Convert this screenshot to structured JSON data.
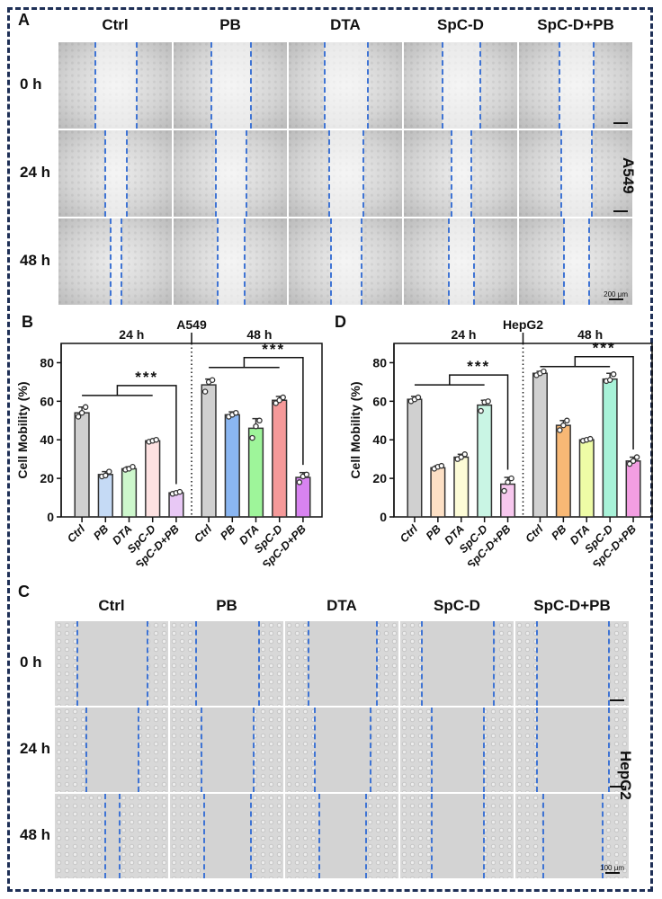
{
  "figure": {
    "panels": {
      "A": "A",
      "B": "B",
      "C": "C",
      "D": "D"
    },
    "groups": [
      "Ctrl",
      "PB",
      "DTA",
      "SpC-D",
      "SpC-D+PB"
    ],
    "timepoints": [
      "0 h",
      "24 h",
      "48 h"
    ],
    "cell_lines": {
      "a549": "A549",
      "hepg2": "HepG2"
    },
    "scale_bars": {
      "a549": "200 μm",
      "hepg2": "100 μm"
    },
    "micrograph_gaps": {
      "a549": {
        "0 h": [
          0.36,
          0.35,
          0.38,
          0.33,
          0.3
        ],
        "24 h": [
          0.19,
          0.27,
          0.29,
          0.17,
          0.26
        ],
        "48 h": [
          0.1,
          0.23,
          0.27,
          0.22,
          0.22
        ]
      },
      "hepg2": {
        "0 h": [
          0.61,
          0.55,
          0.6,
          0.62,
          0.63
        ],
        "24 h": [
          0.45,
          0.45,
          0.49,
          0.46,
          0.62
        ],
        "48 h": [
          0.12,
          0.4,
          0.4,
          0.45,
          0.51
        ]
      }
    }
  },
  "chart_data": [
    {
      "type": "bar",
      "panel": "B",
      "title": "A549",
      "ylabel": "Cell Mobility (%)",
      "xlabel": "",
      "ylim": [
        0,
        90
      ],
      "yticks": [
        0,
        20,
        40,
        60,
        80
      ],
      "section_labels": [
        "24 h",
        "48 h"
      ],
      "categories": [
        "Ctrl",
        "PB",
        "DTA",
        "SpC-D",
        "SpC-D+PB"
      ],
      "colors": [
        "#d0d0d0",
        "#c5daf5",
        "#cdf7cc",
        "#fde1e1",
        "#e8c8f5",
        "#d0d0d0",
        "#8ab6f2",
        "#9ef59a",
        "#f59999",
        "#d883f0"
      ],
      "series": [
        {
          "name": "24 h",
          "values": [
            54,
            22,
            25,
            39.5,
            12.5
          ],
          "errors": [
            3,
            1.5,
            1,
            0.5,
            0.5
          ],
          "points": [
            [
              52,
              54,
              57
            ],
            [
              21,
              21.5,
              23.5
            ],
            [
              24.5,
              25,
              26
            ],
            [
              39,
              39.5,
              40
            ],
            [
              12,
              12.5,
              13
            ]
          ]
        },
        {
          "name": "48 h",
          "values": [
            68.5,
            53,
            46,
            60.5,
            20.5
          ],
          "errors": [
            3,
            1.5,
            5,
            2,
            2.5
          ],
          "points": [
            [
              65,
              70,
              71
            ],
            [
              52,
              53,
              54
            ],
            [
              41,
              47,
              50
            ],
            [
              59,
              60.5,
              62
            ],
            [
              18,
              21,
              22
            ]
          ]
        }
      ],
      "significance": [
        {
          "section": "24 h",
          "label": "***",
          "from": [
            0,
            3
          ],
          "to": 4
        },
        {
          "section": "48 h",
          "label": "***",
          "from": [
            0,
            3
          ],
          "to": 4
        }
      ],
      "grid": false
    },
    {
      "type": "bar",
      "panel": "D",
      "title": "HepG2",
      "ylabel": "Cell Mobility (%)",
      "xlabel": "",
      "ylim": [
        0,
        90
      ],
      "yticks": [
        0,
        20,
        40,
        60,
        80
      ],
      "section_labels": [
        "24 h",
        "48 h"
      ],
      "categories": [
        "Ctrl",
        "PB",
        "DTA",
        "SpC-D",
        "SpC-D+PB"
      ],
      "colors": [
        "#d0d0d0",
        "#fde0c5",
        "#fdfcd7",
        "#c9f5e4",
        "#f7c7ee",
        "#d0d0d0",
        "#f8b875",
        "#eefca6",
        "#a8f2d8",
        "#f39ee2"
      ],
      "series": [
        {
          "name": "24 h",
          "values": [
            61,
            25.5,
            31,
            58,
            17
          ],
          "errors": [
            1.5,
            1,
            1.5,
            2.5,
            3.5
          ],
          "points": [
            [
              60,
              61,
              62
            ],
            [
              25,
              26,
              26.5
            ],
            [
              30,
              31,
              32.5
            ],
            [
              55,
              59.5,
              60
            ],
            [
              13.5,
              18,
              20
            ]
          ]
        },
        {
          "name": "48 h",
          "values": [
            74.5,
            47.5,
            40,
            71.5,
            29
          ],
          "errors": [
            1,
            2.5,
            0.5,
            3,
            2
          ],
          "points": [
            [
              73.5,
              74.5,
              75.5
            ],
            [
              45,
              47.5,
              50
            ],
            [
              39.5,
              40,
              40.5
            ],
            [
              70.5,
              71,
              74
            ],
            [
              27.5,
              29,
              31
            ]
          ]
        }
      ],
      "significance": [
        {
          "section": "24 h",
          "label": "***",
          "from": [
            0,
            3
          ],
          "to": 4
        },
        {
          "section": "48 h",
          "label": "***",
          "from": [
            0,
            3
          ],
          "to": 4
        }
      ],
      "grid": false
    }
  ]
}
